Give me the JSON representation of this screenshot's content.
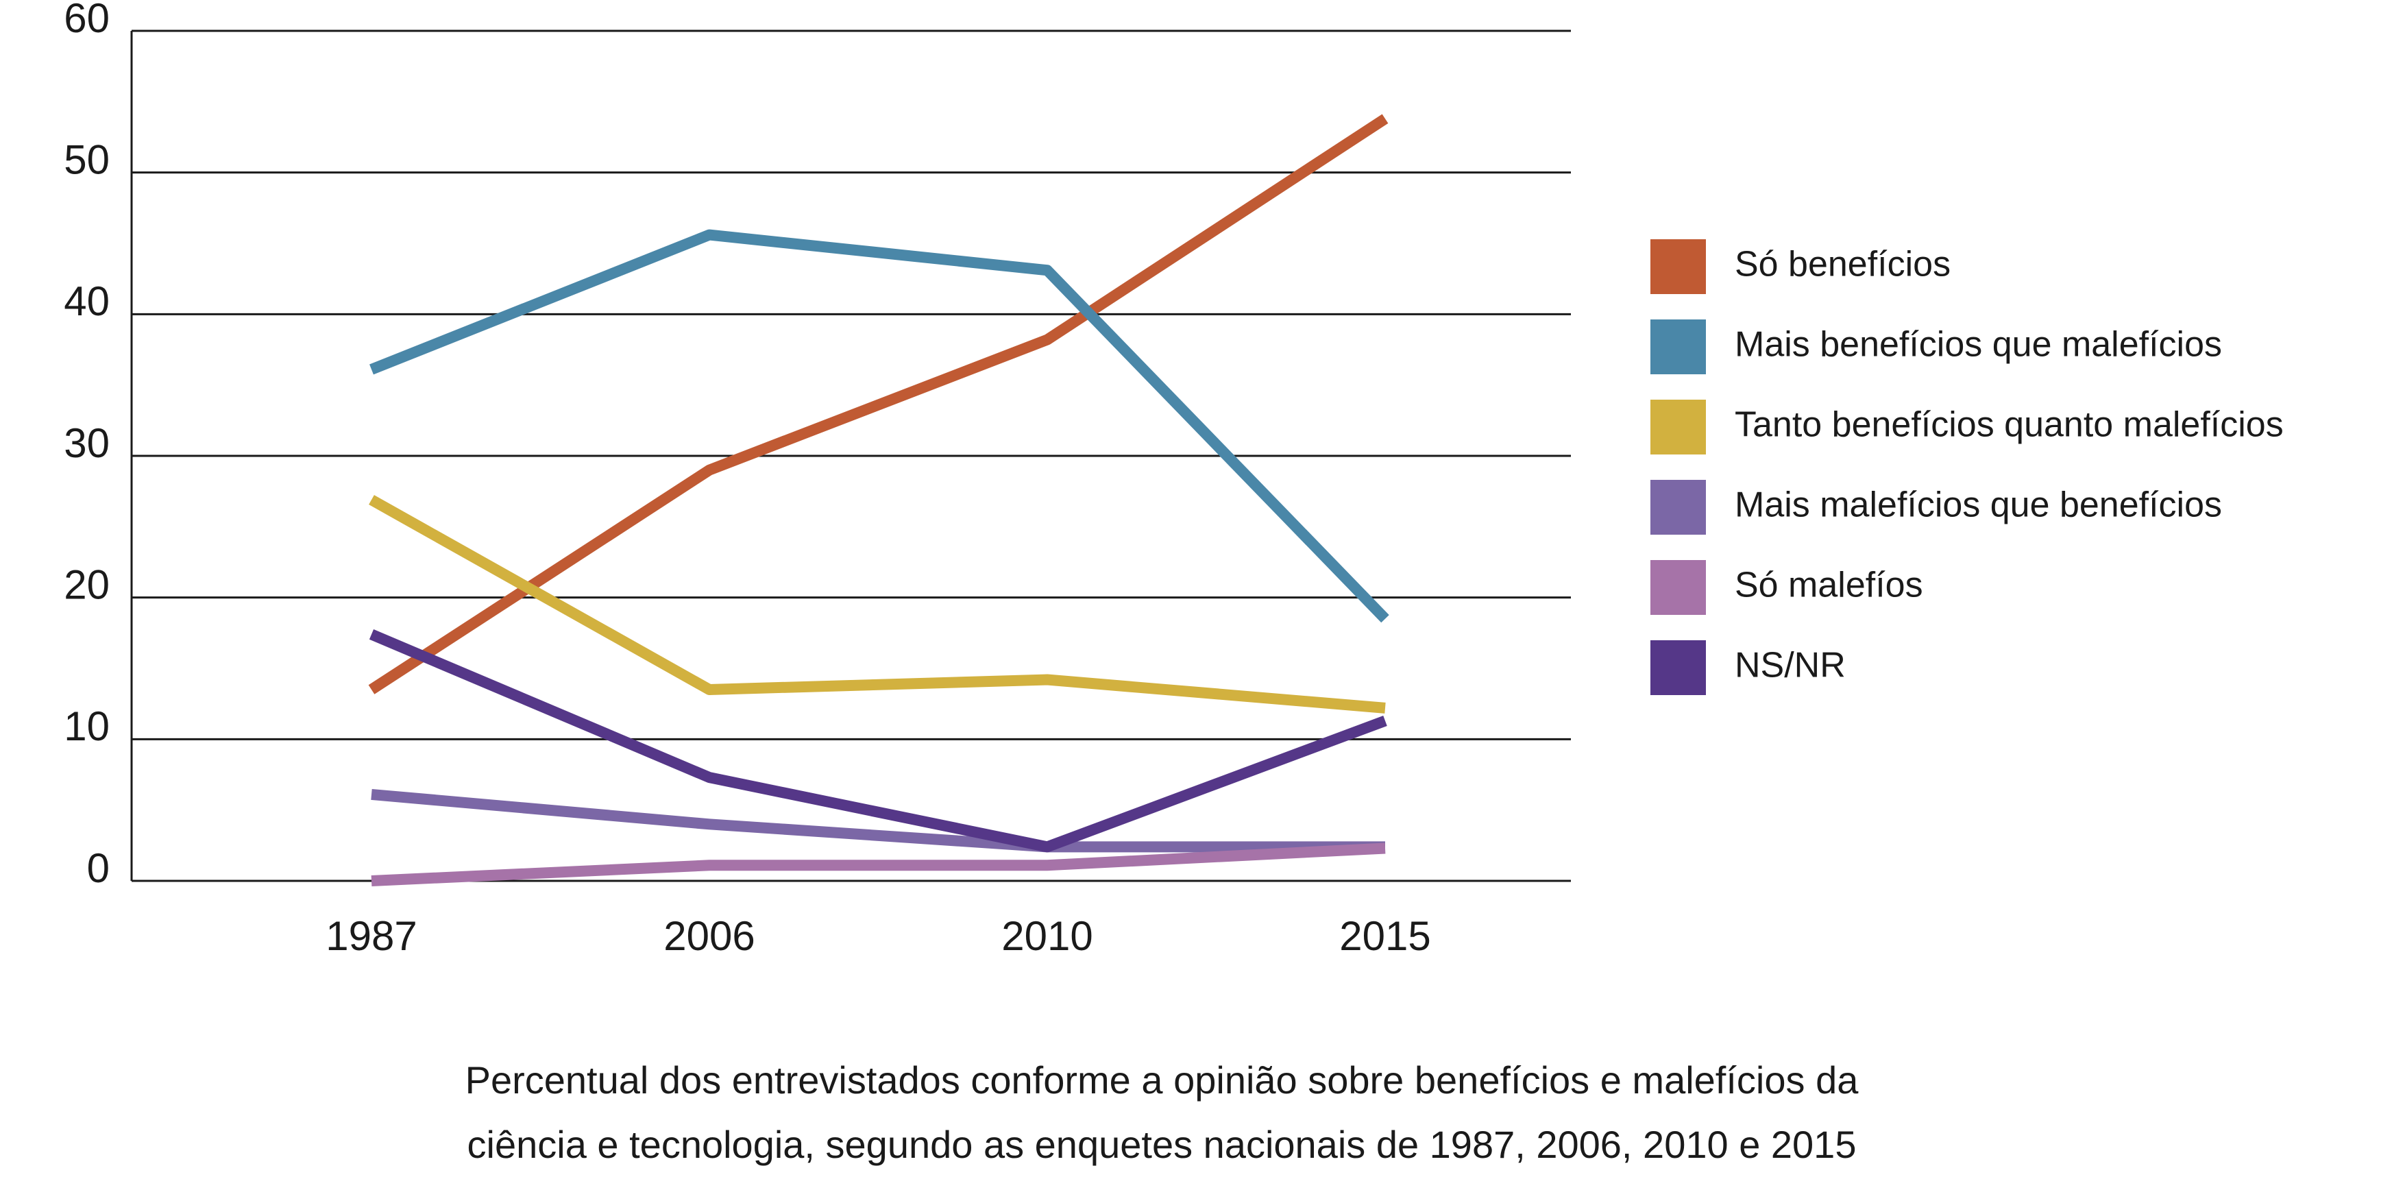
{
  "chart_data": {
    "type": "line",
    "title": [
      "Percentual dos entrevistados conforme a opinião sobre benefícios e malefícios da",
      "ciência e tecnologia, segundo as enquetes nacionais de 1987, 2006, 2010 e 2015"
    ],
    "categories": [
      "1987",
      "2006",
      "2010",
      "2015"
    ],
    "series": [
      {
        "name": "Só benefícios",
        "color": "#c05a33",
        "values": [
          13.5,
          29,
          38.2,
          53.8
        ]
      },
      {
        "name": "Mais benefícios que malefícios",
        "color": "#4a87a8",
        "values": [
          36.1,
          45.6,
          43.1,
          18.5
        ]
      },
      {
        "name": "Tanto benefícios quanto malefícios",
        "color": "#d2b13f",
        "values": [
          26.9,
          13.5,
          14.2,
          12.2
        ]
      },
      {
        "name": "Mais malefícios que benefícios",
        "color": "#7b67a6",
        "values": [
          6.1,
          4,
          2.4,
          2.4
        ]
      },
      {
        "name": "Só malefíos",
        "color": "#a673a8",
        "values": [
          0,
          1.1,
          1.1,
          2.3
        ]
      },
      {
        "name": "NS/NR",
        "color": "#553788",
        "values": [
          17.4,
          7.3,
          2.4,
          11.3
        ]
      }
    ],
    "ylim": [
      0,
      60
    ],
    "yticks": [
      0,
      10,
      20,
      30,
      40,
      50,
      60
    ],
    "grid": true,
    "legend": "right"
  }
}
